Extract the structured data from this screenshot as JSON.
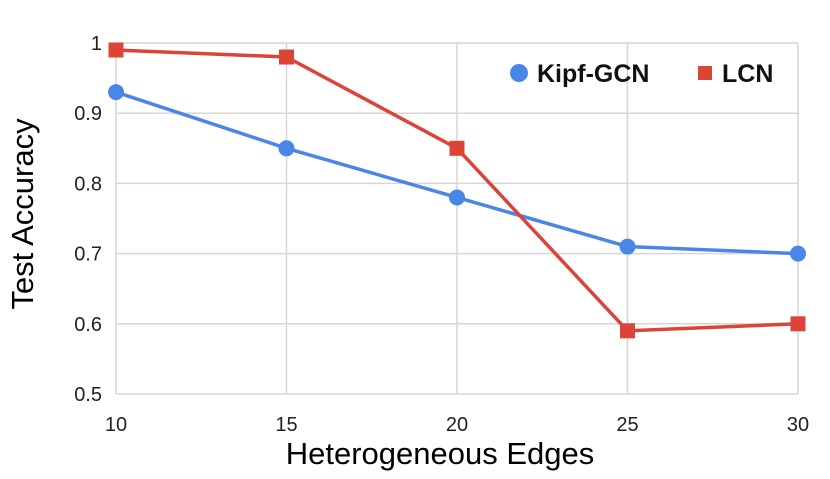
{
  "chart_data": {
    "type": "line",
    "title": "",
    "xlabel": "Heterogeneous Edges",
    "ylabel": "Test Accuracy",
    "x": [
      10,
      15,
      20,
      25,
      30
    ],
    "xlim": [
      10,
      30
    ],
    "ylim": [
      0.5,
      1.0
    ],
    "xticks": [
      "10",
      "15",
      "20",
      "25",
      "30"
    ],
    "yticks": [
      "0.5",
      "0.6",
      "0.7",
      "0.8",
      "0.9",
      "1"
    ],
    "grid": true,
    "legend_position": "top-right",
    "series": [
      {
        "name": "Kipf-GCN",
        "color": "#4a86e8",
        "marker": "circle",
        "values": [
          0.93,
          0.85,
          0.78,
          0.71,
          0.7
        ]
      },
      {
        "name": "LCN",
        "color": "#db4437",
        "marker": "square",
        "values": [
          0.99,
          0.98,
          0.85,
          0.59,
          0.6
        ]
      }
    ]
  }
}
